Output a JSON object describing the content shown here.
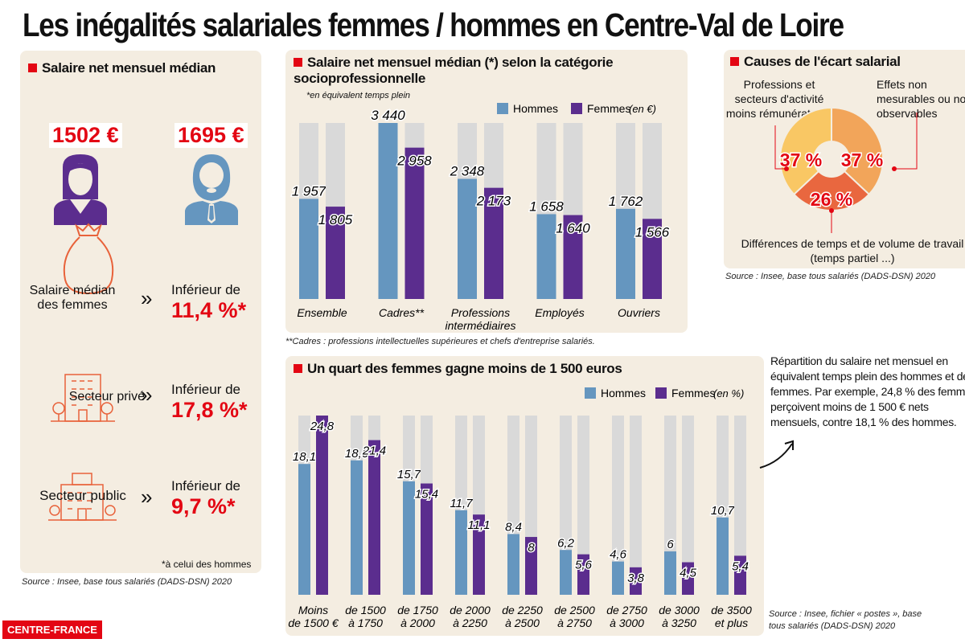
{
  "title": "Les inégalités salariales femmes / hommes en Centre-Val de Loire",
  "colors": {
    "hommes": "#6596bf",
    "femmes": "#5b2d8e",
    "background_bar": "#d9d9d9",
    "accent": "#e30613",
    "panel": "#f4ede1"
  },
  "left": {
    "title": "Salaire net mensuel médian",
    "femme_value": "1502 €",
    "homme_value": "1695 €",
    "rows": [
      {
        "icon": "money-bag-icon",
        "label": "Salaire médian des femmes",
        "prefix": "Inférieur de",
        "value": "11,4 %*"
      },
      {
        "icon": "office-building-icon",
        "label": "Secteur privé",
        "prefix": "Inférieur de",
        "value": "17,8 %*"
      },
      {
        "icon": "public-building-icon",
        "label": "Secteur public",
        "prefix": "Inférieur de",
        "value": "9,7 %*"
      }
    ],
    "chevron": "»",
    "footnote": "*à celui des hommes",
    "source": "Source : Insee, base tous salariés (DADS-DSN) 2020"
  },
  "chart_data": [
    {
      "type": "bar",
      "title": "Salaire net mensuel médian (*) selon la catégorie socioprofessionnelle",
      "subtitle": "*en équivalent temps plein",
      "unit": "(en €)",
      "legend_position": "top-right",
      "categories": [
        "Ensemble",
        "Cadres**",
        "Professions intermédiaires",
        "Employés",
        "Ouvriers"
      ],
      "series": [
        {
          "name": "Hommes",
          "values": [
            1957,
            3440,
            2348,
            1658,
            1762
          ],
          "labels": [
            "1 957",
            "3 440",
            "2 348",
            "1 658",
            "1 762"
          ]
        },
        {
          "name": "Femmes",
          "values": [
            1805,
            2958,
            2173,
            1640,
            1566
          ],
          "labels": [
            "1 805",
            "2 958",
            "2 173",
            "1 640",
            "1 566"
          ]
        }
      ],
      "ylim": [
        0,
        3440
      ],
      "footnote": "**Cadres : professions intellectuelles supérieures et chefs d'entreprise salariés."
    },
    {
      "type": "bar",
      "title": "Un quart des femmes gagne moins de 1 500 euros",
      "unit": "(en %)",
      "legend_position": "top-right",
      "categories": [
        "Moins de 1500 €",
        "de 1500 à 1750",
        "de 1750 à 2000",
        "de 2000 à 2250",
        "de 2250 à 2500",
        "de 2500 à 2750",
        "de 2750 à 3000",
        "de 3000 à 3250",
        "de 3500 et plus"
      ],
      "series": [
        {
          "name": "Hommes",
          "values": [
            18.1,
            18.6,
            15.7,
            11.7,
            8.4,
            6.2,
            4.6,
            6,
            10.7
          ],
          "labels": [
            "18,1",
            "18,6",
            "15,7",
            "11,7",
            "8,4",
            "6,2",
            "4,6",
            "6",
            "10,7"
          ]
        },
        {
          "name": "Femmes",
          "values": [
            24.8,
            21.4,
            15.4,
            11.1,
            8,
            5.6,
            3.8,
            4.5,
            5.4
          ],
          "labels": [
            "24,8",
            "21,4",
            "15,4",
            "11,1",
            "8",
            "5,6",
            "3,8",
            "4,5",
            "5,4"
          ]
        }
      ],
      "ylim": [
        0,
        24.8
      ],
      "note": "Répartition du salaire net mensuel en équivalent temps plein des hommes et des femmes. Par exemple, 24,8 % des femmes perçoivent moins de 1 500 € nets mensuels, contre 18,1 % des hommes.",
      "source": "Source : Insee, fichier « postes », base tous salariés (DADS-DSN) 2020"
    },
    {
      "type": "pie",
      "title": "Causes de l'écart salarial",
      "slices": [
        {
          "label": "Effets non mesurables ou non observables",
          "value": 37,
          "text": "37 %",
          "color": "#f2a55a"
        },
        {
          "label": "Différences de temps et de volume de travail (temps partiel ...)",
          "value": 26,
          "text": "26 %",
          "color": "#e9673f"
        },
        {
          "label": "Professions et secteurs d'activité moins rémunérateurs",
          "value": 37,
          "text": "37 %",
          "color": "#f9c764"
        }
      ],
      "source": "Source : Insee, base tous salariés (DADS-DSN) 2020"
    }
  ],
  "logo": "CENTRE-FRANCE"
}
